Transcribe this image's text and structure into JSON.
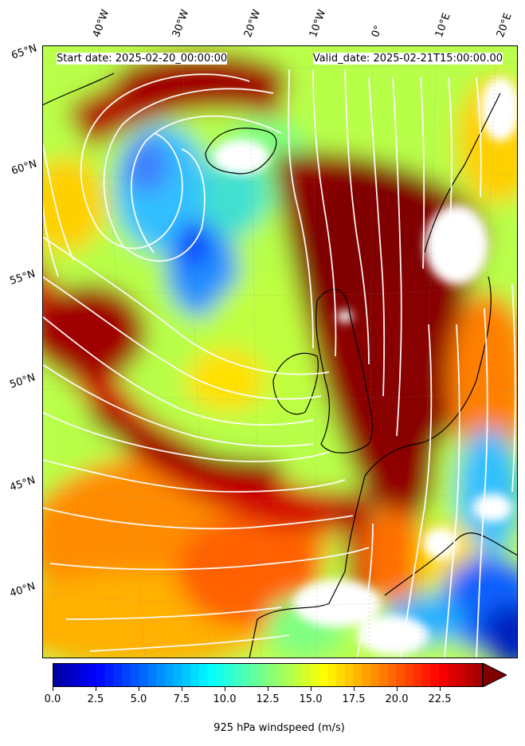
{
  "header": {
    "start_date": "Start date: 2025-02-20_00:00:00",
    "valid_date": "Valid_date: 2025-02-21T15:00:00.00"
  },
  "longitude_labels": [
    "40°W",
    "30°W",
    "20°W",
    "10°W",
    "0°",
    "10°E",
    "20°E"
  ],
  "latitude_labels": [
    "65°N",
    "60°N",
    "55°N",
    "50°N",
    "45°N",
    "40°N"
  ],
  "colorbar": {
    "title": "925 hPa windspeed (m/s)",
    "tick_labels": [
      "0.0",
      "2.5",
      "5.0",
      "7.5",
      "10.0",
      "12.5",
      "15.0",
      "17.5",
      "20.0",
      "22.5"
    ],
    "ticks": [
      0,
      2.5,
      5,
      7.5,
      10,
      12.5,
      15,
      17.5,
      20,
      22.5
    ],
    "range": [
      0,
      25
    ],
    "extend": "max",
    "colormap": "jet"
  },
  "colors": {
    "land_outline": "#000000",
    "streamlines": "#ffffff",
    "missing": "#ffffff",
    "max_wind": "#800000"
  },
  "map": {
    "projection": "lambert-conformal",
    "field": "windspeed",
    "level": "925 hPa",
    "overlay": "streamlines"
  }
}
